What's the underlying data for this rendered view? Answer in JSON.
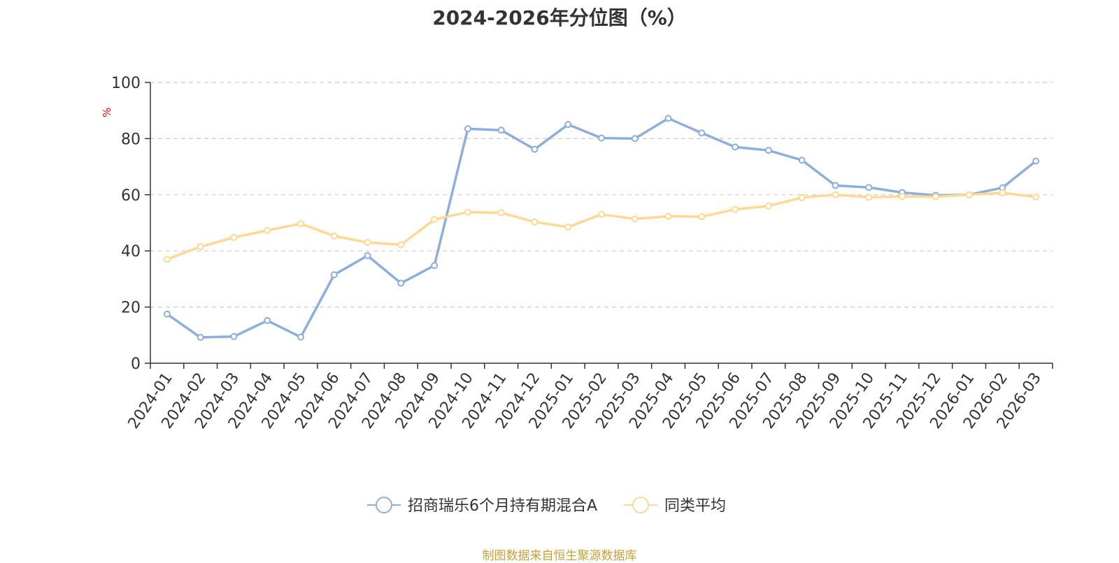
{
  "chart_data": {
    "type": "line",
    "title": "2024-2026年分位图（%）",
    "ylabel": "%",
    "ylim": [
      0,
      100
    ],
    "yticks": [
      0,
      20,
      40,
      60,
      80,
      100
    ],
    "grid": true,
    "legend_position": "bottom",
    "categories": [
      "2024-01",
      "2024-02",
      "2024-03",
      "2024-04",
      "2024-05",
      "2024-06",
      "2024-07",
      "2024-08",
      "2024-09",
      "2024-10",
      "2024-11",
      "2024-12",
      "2025-01",
      "2025-02",
      "2025-03",
      "2025-04",
      "2025-05",
      "2025-06",
      "2025-07",
      "2025-08",
      "2025-09",
      "2025-10",
      "2025-11",
      "2025-12",
      "2026-01",
      "2026-02",
      "2026-03"
    ],
    "series": [
      {
        "name": "招商瑞乐6个月持有期混合A",
        "color": "#8eaedb",
        "values": [
          17.5,
          9.2,
          9.5,
          15.2,
          9.3,
          31.5,
          38.3,
          28.5,
          34.8,
          83.5,
          83.0,
          76.2,
          85.0,
          80.2,
          80.0,
          87.2,
          82.0,
          77.0,
          75.8,
          72.3,
          63.3,
          62.6,
          60.8,
          59.8,
          60.0,
          62.5,
          72.0
        ]
      },
      {
        "name": "同类平均",
        "color": "#fdd993",
        "values": [
          37.0,
          41.5,
          44.8,
          47.3,
          49.7,
          45.3,
          43.0,
          42.2,
          51.2,
          53.8,
          53.6,
          50.3,
          48.5,
          53.0,
          51.4,
          52.3,
          52.2,
          54.8,
          56.0,
          59.0,
          60.0,
          59.1,
          59.4,
          59.3,
          60.0,
          60.7,
          59.2
        ]
      }
    ]
  },
  "footer": {
    "text": "制图数据来自恒生聚源数据库",
    "color": "#c8a13a"
  }
}
